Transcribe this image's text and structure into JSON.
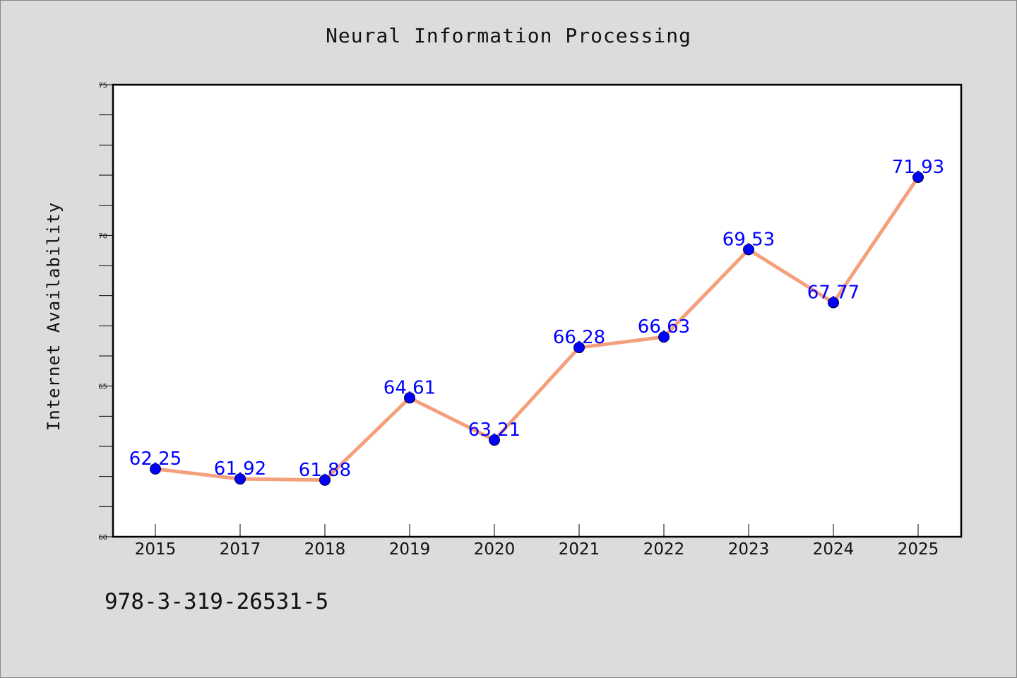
{
  "chart_data": {
    "type": "line",
    "title": "Neural Information Processing",
    "xlabel": "",
    "ylabel": "Internet Availability",
    "categories": [
      "2015",
      "2017",
      "2018",
      "2019",
      "2020",
      "2021",
      "2022",
      "2023",
      "2024",
      "2025"
    ],
    "series": [
      {
        "values": [
          62.25,
          61.92,
          61.88,
          64.61,
          63.21,
          66.28,
          66.63,
          69.53,
          67.77,
          71.93
        ],
        "line_color": "#f4a07c",
        "marker_color": "#0000ff"
      }
    ],
    "data_labels": [
      "62.25",
      "61.92",
      "61.88",
      "64.61",
      "63.21",
      "66.28",
      "66.63",
      "69.53",
      "67.77",
      "71.93"
    ],
    "ylim": [
      60,
      75
    ],
    "yticks": [
      "60",
      "65",
      "70",
      "75"
    ],
    "grid": false,
    "legend": "none"
  },
  "footer": {
    "isbn": "978-3-319-26531-5"
  },
  "colors": {
    "background": "#dcdcdc",
    "plot_background": "#ffffff",
    "data_label": "#0000ff"
  }
}
